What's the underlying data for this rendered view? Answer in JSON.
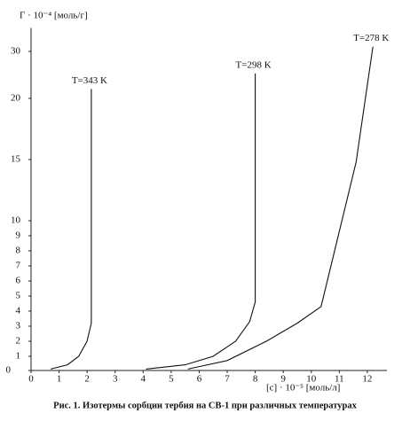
{
  "chart_data": {
    "type": "line",
    "y_label": "Г · 10⁻⁴ [моль/г]",
    "x_label": "[c] · 10⁻⁵ [моль/л]",
    "caption": "Рис.  1. Изотермы сорбции тербия на СВ-1 при различных температурах",
    "xlim": [
      0,
      12.7
    ],
    "xticks": [
      0,
      1,
      2,
      3,
      4,
      5,
      6,
      7,
      8,
      9,
      10,
      11,
      12
    ],
    "ylim": [
      0,
      35
    ],
    "yticks": [
      0,
      1,
      2,
      3,
      4,
      5,
      6,
      7,
      8,
      9,
      10,
      15,
      20,
      30
    ],
    "series": [
      {
        "name": "T=343 K",
        "color": "#111111",
        "x": [
          0.7,
          1.3,
          1.7,
          2.0,
          2.15,
          2.15
        ],
        "values": [
          0.1,
          0.4,
          1,
          2,
          3.2,
          22
        ]
      },
      {
        "name": "T=298 K",
        "color": "#111111",
        "x": [
          4.1,
          5.5,
          6.5,
          7.3,
          7.8,
          8.0,
          8.0
        ],
        "values": [
          0.1,
          0.4,
          1,
          2,
          3.3,
          4.6,
          25.3
        ]
      },
      {
        "name": "T=278 K",
        "color": "#111111",
        "x": [
          5.6,
          7,
          8.4,
          9.5,
          10.35,
          11.6,
          12.2
        ],
        "values": [
          0.1,
          0.7,
          2,
          3.2,
          4.3,
          14.8,
          31
        ]
      }
    ]
  }
}
